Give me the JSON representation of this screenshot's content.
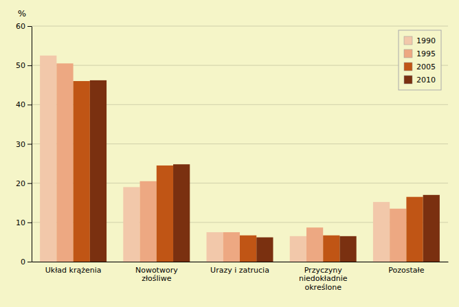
{
  "chart_data": {
    "type": "bar",
    "ylabel": "%",
    "categories": [
      "Układ krążenia",
      "Nowotwory\nzłośliwe",
      "Urazy i zatrucia",
      "Przyczyny\nniedokładnie\nokreślone",
      "Pozostałe"
    ],
    "series": [
      {
        "name": "1990",
        "color": "#f2c8aa",
        "values": [
          52.5,
          19.0,
          7.5,
          6.5,
          15.2
        ]
      },
      {
        "name": "1995",
        "color": "#eda882",
        "values": [
          50.5,
          20.5,
          7.5,
          8.7,
          13.5
        ]
      },
      {
        "name": "2005",
        "color": "#c05515",
        "values": [
          46.0,
          24.5,
          6.7,
          6.7,
          16.5
        ]
      },
      {
        "name": "2010",
        "color": "#7a3010",
        "values": [
          46.2,
          24.8,
          6.2,
          6.5,
          17.0
        ]
      }
    ],
    "ylim": [
      0,
      60
    ],
    "yticks": [
      0,
      10,
      20,
      30,
      40,
      50,
      60
    ],
    "grid": true,
    "legend": "upper right"
  }
}
